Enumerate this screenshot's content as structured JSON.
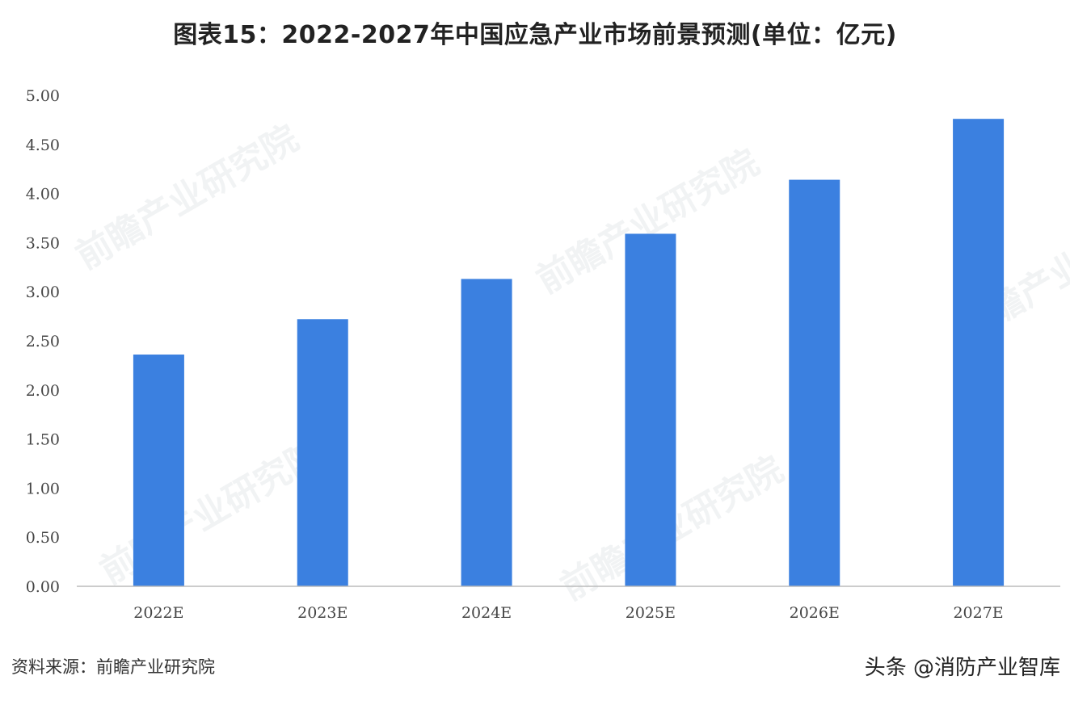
{
  "title": "图表15：2022-2027年中国应急产业市场前景预测(单位：亿元)",
  "source": "资料来源：前瞻产业研究院",
  "credit": "头条 @消防产业智库",
  "watermark": "前瞻产业研究院",
  "colors": {
    "bar": "#3b80e0",
    "axis_text": "#444444",
    "baseline": "#bbbbbb"
  },
  "chart_data": {
    "type": "bar",
    "title": "图表15：2022-2027年中国应急产业市场前景预测(单位：亿元)",
    "categories": [
      "2022E",
      "2023E",
      "2024E",
      "2025E",
      "2026E",
      "2027E"
    ],
    "values": [
      2.36,
      2.72,
      3.13,
      3.59,
      4.14,
      4.76
    ],
    "ylim": [
      0,
      5
    ],
    "yticks": [
      "0.00",
      "0.50",
      "1.00",
      "1.50",
      "2.00",
      "2.50",
      "3.00",
      "3.50",
      "4.00",
      "4.50",
      "5.00"
    ],
    "grid": false,
    "xlabel": "",
    "ylabel": ""
  }
}
